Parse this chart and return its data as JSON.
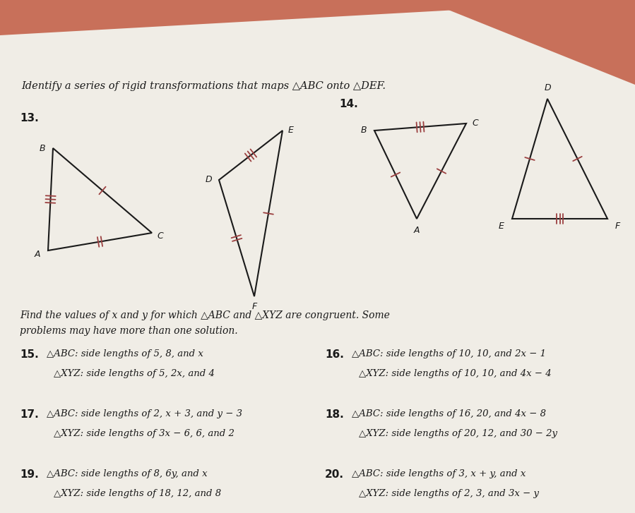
{
  "bg_color": "#c8705a",
  "page_color": "#f0ede6",
  "text_color": "#1a1a1a",
  "tick_color": "#9b4040",
  "title_text": "Identify a series of rigid transformations that maps △ABC onto △DEF.",
  "num14_label": "14.",
  "num13_label": "13.",
  "find_values_title1": "Find the values of x and y for which △ABC and △XYZ are congruent. Some",
  "find_values_title2": "problems may have more than one solution.",
  "header_fontsize": 10.5,
  "body_fontsize": 10,
  "small_fontsize": 9.5,
  "label_fontsize": 9,
  "num_fontsize": 11,
  "problems": [
    {
      "num": "15.",
      "abc": "△ABC: side lengths of 5, 8, and x",
      "xyz": "△XYZ: side lengths of 5, 2x, and 4"
    },
    {
      "num": "16.",
      "abc": "△ABC: side lengths of 10, 10, and 2x − 1",
      "xyz": "△XYZ: side lengths of 10, 10, and 4x − 4"
    },
    {
      "num": "17.",
      "abc": "△ABC: side lengths of 2, x + 3, and y − 3",
      "xyz": "△XYZ: side lengths of 3x − 6, 6, and 2"
    },
    {
      "num": "18.",
      "abc": "△ABC: side lengths of 16, 20, and 4x − 8",
      "xyz": "△XYZ: side lengths of 20, 12, and 30 − 2y"
    },
    {
      "num": "19.",
      "abc": "△ABC: side lengths of 8, 6y, and x",
      "xyz": "△XYZ: side lengths of 18, 12, and 8"
    },
    {
      "num": "20.",
      "abc": "△ABC: side lengths of 3, x + y, and x",
      "xyz": "△XYZ: side lengths of 2, 3, and 3x − y"
    }
  ]
}
